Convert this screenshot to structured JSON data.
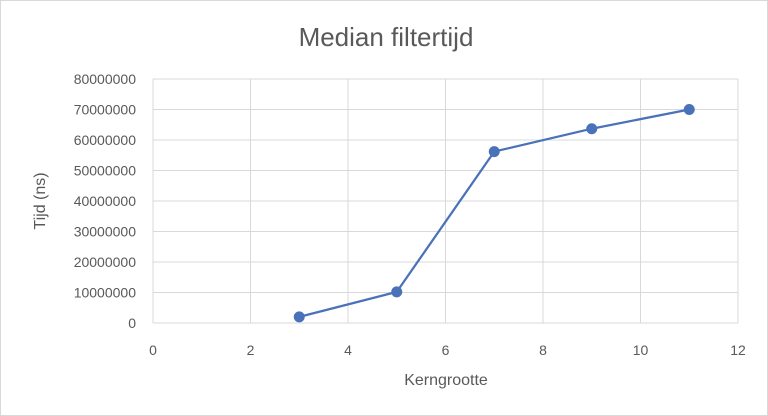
{
  "chart_data": {
    "type": "scatter",
    "title": "Median filtertijd",
    "xlabel": "Kerngrootte",
    "ylabel": "Tijd (ns)",
    "xlim": [
      0,
      12
    ],
    "ylim": [
      0,
      80000000
    ],
    "xticks": [
      "0",
      "2",
      "4",
      "6",
      "8",
      "10",
      "12"
    ],
    "yticks": [
      "0",
      "10000000",
      "20000000",
      "30000000",
      "40000000",
      "50000000",
      "60000000",
      "70000000",
      "80000000"
    ],
    "grid": true,
    "legend": "none",
    "series": [
      {
        "color": "#4a72b8",
        "lines": true,
        "markers": true,
        "points": [
          {
            "x": 3,
            "y": 2000000
          },
          {
            "x": 5,
            "y": 10200000
          },
          {
            "x": 7,
            "y": 56200000
          },
          {
            "x": 9,
            "y": 63700000
          },
          {
            "x": 11,
            "y": 70000000
          }
        ]
      }
    ]
  }
}
